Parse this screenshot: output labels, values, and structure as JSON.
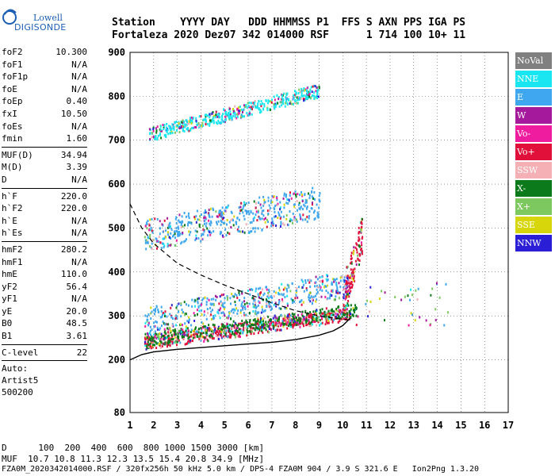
{
  "logo": {
    "top": "Lowell",
    "bottom": "DIGISONDE"
  },
  "header": {
    "line1": "Station    YYYY DAY   DDD HHMMSS P1  FFS S AXN PPS IGA PS",
    "line2": "Fortaleza 2020 Dez07 342 014000 RSF      1 714 100 10+ 11"
  },
  "params": {
    "group1": [
      {
        "label": "foF2",
        "value": "10.300"
      },
      {
        "label": "foF1",
        "value": "N/A"
      },
      {
        "label": "foF1p",
        "value": "N/A"
      },
      {
        "label": "foE",
        "value": "N/A"
      },
      {
        "label": "foEp",
        "value": "0.40"
      },
      {
        "label": "fxI",
        "value": "10.50"
      },
      {
        "label": "foEs",
        "value": "N/A"
      },
      {
        "label": "fmin",
        "value": "1.60"
      }
    ],
    "group2": [
      {
        "label": "MUF(D)",
        "value": "34.94"
      },
      {
        "label": "M(D)",
        "value": "3.39"
      },
      {
        "label": "D",
        "value": "N/A"
      }
    ],
    "group3": [
      {
        "label": "h`F",
        "value": "220.0"
      },
      {
        "label": "h`F2",
        "value": "220.0"
      },
      {
        "label": "h`E",
        "value": "N/A"
      },
      {
        "label": "h`Es",
        "value": "N/A"
      }
    ],
    "group4": [
      {
        "label": "hmF2",
        "value": "280.2"
      },
      {
        "label": "hmF1",
        "value": "N/A"
      },
      {
        "label": "hmE",
        "value": "110.0"
      },
      {
        "label": "yF2",
        "value": "56.4"
      },
      {
        "label": "yF1",
        "value": "N/A"
      },
      {
        "label": "yE",
        "value": "20.0"
      },
      {
        "label": "B0",
        "value": "48.5"
      },
      {
        "label": "B1",
        "value": "3.61"
      }
    ],
    "group5": [
      {
        "label": "C-level",
        "value": "22"
      }
    ],
    "extra": [
      "Auto:",
      "Artist5",
      "500200"
    ]
  },
  "footer": {
    "d_line": "D      100  200  400  600  800 1000 1500 3000 [km]",
    "muf_line": "MUF  10.7 10.8 11.3 12.3 13.5 15.4 20.8 34.9 [MHz]",
    "info_line": "FZA0M_2020342014000.RSF / 320fx256h 50 kHz 5.0 km / DPS-4 FZA0M 904 / 3.9 S 321.6 E   Ion2Png 1.3.20"
  },
  "legend": [
    {
      "label": "NoVal",
      "color": "#808080"
    },
    {
      "label": "NNE",
      "color": "#19e6f0"
    },
    {
      "label": "E",
      "color": "#3ea7ef"
    },
    {
      "label": "W",
      "color": "#a51a9c"
    },
    {
      "label": "Vo-",
      "color": "#ef1ca0"
    },
    {
      "label": "Vo+",
      "color": "#e0103a"
    },
    {
      "label": "SSW",
      "color": "#f4b0b4"
    },
    {
      "label": "X-",
      "color": "#0a7a1a"
    },
    {
      "label": "X+",
      "color": "#7ec860"
    },
    {
      "label": "SSE",
      "color": "#d6d60a"
    },
    {
      "label": "NNW",
      "color": "#2a1fd6"
    }
  ],
  "chart_data": {
    "type": "scatter",
    "xlim": [
      1,
      17
    ],
    "ylim": [
      80,
      900
    ],
    "x_ticks": [
      1,
      2,
      3,
      4,
      5,
      6,
      7,
      8,
      9,
      10,
      11,
      12,
      13,
      14,
      15,
      16,
      17
    ],
    "y_ticks": [
      80,
      200,
      300,
      400,
      500,
      600,
      700,
      800,
      900
    ],
    "grid": true,
    "legend_position": "right",
    "profile_solid": [
      [
        1.0,
        200
      ],
      [
        1.5,
        212
      ],
      [
        2,
        218
      ],
      [
        3,
        224
      ],
      [
        4,
        228
      ],
      [
        5,
        232
      ],
      [
        6,
        236
      ],
      [
        7,
        240
      ],
      [
        8,
        246
      ],
      [
        9,
        256
      ],
      [
        9.6,
        266
      ],
      [
        10.0,
        278
      ],
      [
        10.3,
        294
      ]
    ],
    "trace_dashed": [
      [
        1.0,
        555
      ],
      [
        1.5,
        500
      ],
      [
        2,
        465
      ],
      [
        3,
        420
      ],
      [
        4,
        393
      ],
      [
        5,
        370
      ],
      [
        6,
        350
      ],
      [
        7,
        330
      ],
      [
        8,
        312
      ],
      [
        9,
        300
      ],
      [
        10,
        292
      ],
      [
        10.3,
        291
      ]
    ],
    "traces": [
      {
        "name": "F2 O-trace",
        "x_range": [
          1.6,
          10.3
        ],
        "h_low": [
          225,
          290
        ],
        "color": "Vo+"
      },
      {
        "name": "F2 X-trace",
        "x_range": [
          1.6,
          10.6
        ],
        "h_low": [
          232,
          300
        ],
        "color": "X-"
      },
      {
        "name": "F2 spread",
        "x_range": [
          1.6,
          10.2
        ],
        "h_low": [
          260,
          345
        ],
        "color": "E"
      },
      {
        "name": "2F2",
        "x_range": [
          1.6,
          9.0
        ],
        "h_low": [
          450,
          520
        ],
        "h_high": [
          520,
          600
        ],
        "color": "E"
      },
      {
        "name": "3F2",
        "x_range": [
          1.8,
          9.0
        ],
        "h_low": [
          700,
          800
        ],
        "color": "NNE"
      },
      {
        "name": "spike",
        "x_range": [
          10.0,
          10.8
        ],
        "h_low": [
          300,
          440
        ],
        "color": "Vo+"
      }
    ]
  }
}
